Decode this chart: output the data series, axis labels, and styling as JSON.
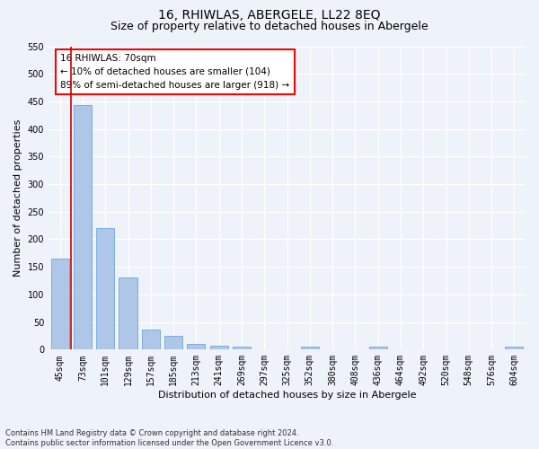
{
  "title": "16, RHIWLAS, ABERGELE, LL22 8EQ",
  "subtitle": "Size of property relative to detached houses in Abergele",
  "xlabel": "Distribution of detached houses by size in Abergele",
  "ylabel": "Number of detached properties",
  "categories": [
    "45sqm",
    "73sqm",
    "101sqm",
    "129sqm",
    "157sqm",
    "185sqm",
    "213sqm",
    "241sqm",
    "269sqm",
    "297sqm",
    "325sqm",
    "352sqm",
    "380sqm",
    "408sqm",
    "436sqm",
    "464sqm",
    "492sqm",
    "520sqm",
    "548sqm",
    "576sqm",
    "604sqm"
  ],
  "values": [
    165,
    443,
    220,
    130,
    37,
    25,
    11,
    7,
    6,
    0,
    0,
    5,
    0,
    0,
    6,
    0,
    0,
    0,
    0,
    0,
    6
  ],
  "bar_color": "#aec6e8",
  "bar_edge_color": "#5b9bd5",
  "ylim": [
    0,
    550
  ],
  "yticks": [
    0,
    50,
    100,
    150,
    200,
    250,
    300,
    350,
    400,
    450,
    500,
    550
  ],
  "annotation_line_color": "#cc0000",
  "annotation_box_text": "16 RHIWLAS: 70sqm\n← 10% of detached houses are smaller (104)\n89% of semi-detached houses are larger (918) →",
  "footer_text": "Contains HM Land Registry data © Crown copyright and database right 2024.\nContains public sector information licensed under the Open Government Licence v3.0.",
  "bg_color": "#eef2f9",
  "grid_color": "#ffffff",
  "title_fontsize": 10,
  "subtitle_fontsize": 9,
  "ylabel_fontsize": 8,
  "xlabel_fontsize": 8,
  "tick_fontsize": 7,
  "annot_fontsize": 7.5,
  "footer_fontsize": 6
}
